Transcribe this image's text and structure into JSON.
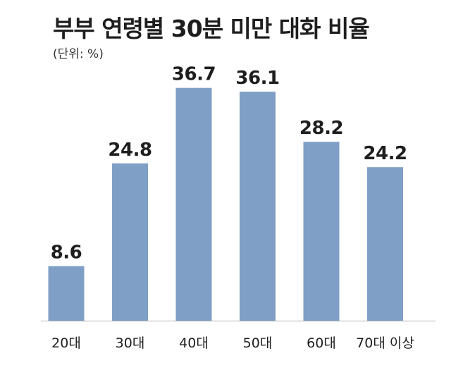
{
  "chart_data": {
    "type": "bar",
    "title": "부부 연령별 30분 미만 대화 비율",
    "subtitle": "(단위: %)",
    "xlabel": "",
    "ylabel": "",
    "categories": [
      "20대",
      "30대",
      "40대",
      "50대",
      "60대",
      "70대 이상"
    ],
    "values": [
      8.6,
      24.8,
      36.7,
      36.1,
      28.2,
      24.2
    ],
    "ylim": [
      0,
      40
    ],
    "grid": false,
    "legend": "none"
  },
  "colors": {
    "bar": "#7f9fc6",
    "text": "#1e1e1e",
    "axis": "#b0b0b0",
    "background": "#ffffff"
  }
}
